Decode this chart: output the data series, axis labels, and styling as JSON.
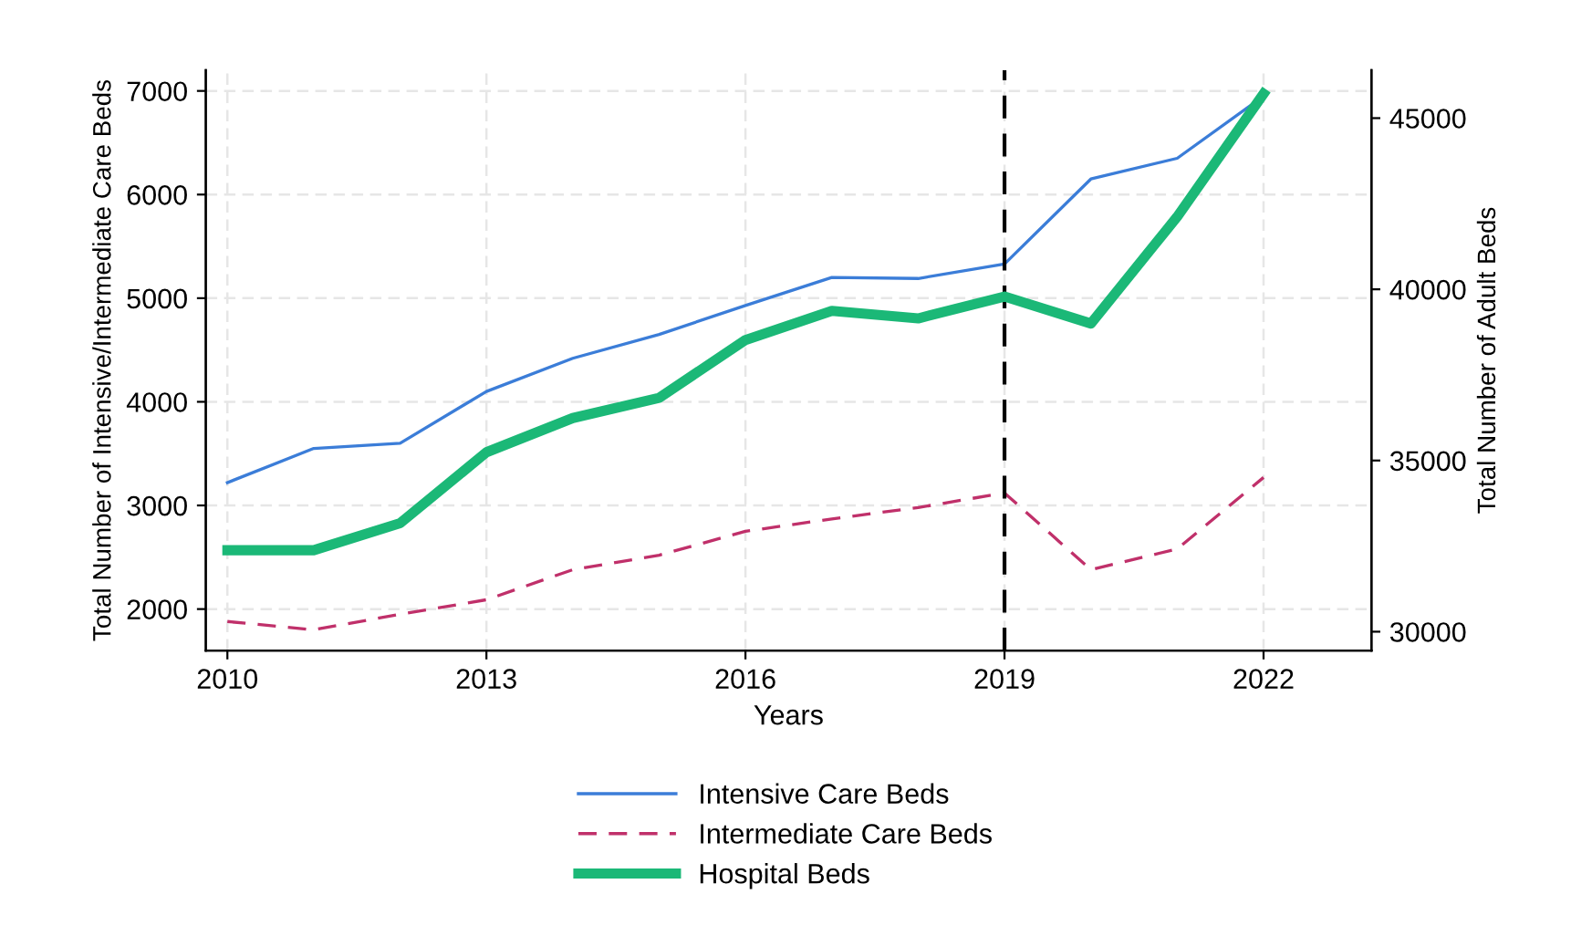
{
  "chart_data": {
    "type": "line",
    "xlabel": "Years",
    "ylabel": "Total Number of Intensive/Intermediate Care Beds",
    "y2label": "Total Number of Adult Beds",
    "x": [
      2010,
      2011,
      2012,
      2013,
      2014,
      2015,
      2016,
      2017,
      2018,
      2019,
      2020,
      2021,
      2022
    ],
    "series": [
      {
        "name": "Intensive Care Beds",
        "color": "#3b7dd8",
        "line_style": "solid",
        "values": [
          3220,
          3550,
          3600,
          4100,
          4420,
          4650,
          4930,
          5200,
          5190,
          5330,
          6150,
          6350,
          6950
        ]
      },
      {
        "name": "Intermediate Care Beds",
        "color": "#c0306a",
        "line_style": "dashed",
        "values": [
          1880,
          1800,
          1950,
          2090,
          2380,
          2520,
          2750,
          2870,
          2980,
          3120,
          2380,
          2580,
          3270
        ]
      },
      {
        "name": "Hospital Beds",
        "color": "#1bb877",
        "line_style": "solid",
        "axis": "y2",
        "values": [
          32380,
          32380,
          33170,
          35240,
          36240,
          36830,
          38520,
          39370,
          39150,
          39790,
          39000,
          42120,
          45710
        ]
      }
    ],
    "xlim": [
      2009.75,
      2023.25
    ],
    "xticks": [
      2010,
      2013,
      2016,
      2019,
      2022
    ],
    "ylim": [
      1600,
      7200
    ],
    "yticks": [
      2000,
      3000,
      4000,
      5000,
      6000,
      7000
    ],
    "y2lim": [
      29450,
      46400
    ],
    "y2ticks": [
      30000,
      35000,
      40000,
      45000
    ],
    "ref_lines": [
      {
        "axis": "x",
        "value": 2019,
        "color": "#000000",
        "line_style": "dashed"
      }
    ],
    "grid": true,
    "legend": "bottom"
  }
}
